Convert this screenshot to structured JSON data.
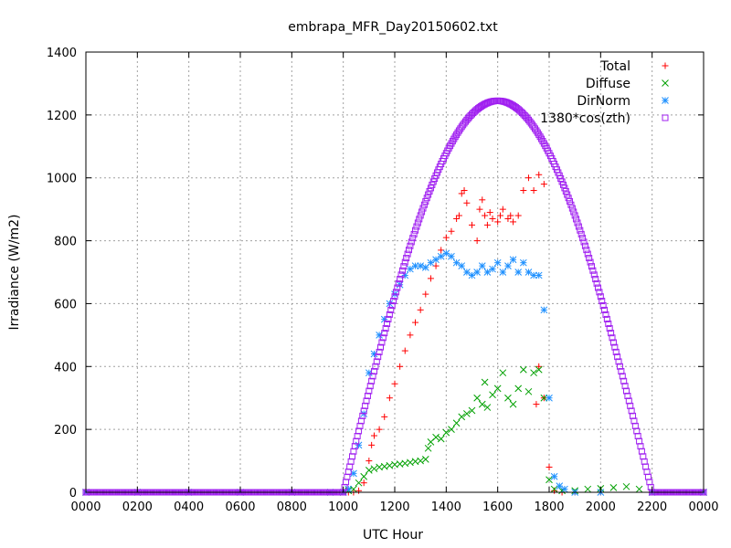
{
  "chart_data": {
    "type": "scatter",
    "title": "embrapa_MFR_Day20150602.txt",
    "xlabel": "UTC Hour",
    "ylabel": "Irradiance (W/m2)",
    "xlim": [
      0,
      24
    ],
    "ylim": [
      0,
      1400
    ],
    "grid": true,
    "legend_position": "top-right",
    "x_ticks": [
      {
        "value": 0,
        "label": "0000"
      },
      {
        "value": 2,
        "label": "0200"
      },
      {
        "value": 4,
        "label": "0400"
      },
      {
        "value": 6,
        "label": "0600"
      },
      {
        "value": 8,
        "label": "0800"
      },
      {
        "value": 10,
        "label": "1000"
      },
      {
        "value": 12,
        "label": "1200"
      },
      {
        "value": 14,
        "label": "1400"
      },
      {
        "value": 16,
        "label": "1600"
      },
      {
        "value": 18,
        "label": "1800"
      },
      {
        "value": 20,
        "label": "2000"
      },
      {
        "value": 22,
        "label": "2200"
      },
      {
        "value": 24,
        "label": "0000"
      }
    ],
    "y_ticks": [
      0,
      200,
      400,
      600,
      800,
      1000,
      1200,
      1400
    ],
    "series": [
      {
        "name": "Total",
        "marker": "plus",
        "color": "#ff0000",
        "points": [
          [
            0,
            0
          ],
          [
            2,
            0
          ],
          [
            4,
            0
          ],
          [
            6,
            0
          ],
          [
            8,
            0
          ],
          [
            9.5,
            0
          ],
          [
            10.0,
            0
          ],
          [
            10.2,
            0
          ],
          [
            10.4,
            0
          ],
          [
            10.6,
            5
          ],
          [
            10.8,
            30
          ],
          [
            11.0,
            100
          ],
          [
            11.1,
            150
          ],
          [
            11.2,
            180
          ],
          [
            11.4,
            200
          ],
          [
            11.6,
            240
          ],
          [
            11.8,
            300
          ],
          [
            12.0,
            345
          ],
          [
            12.2,
            400
          ],
          [
            12.4,
            450
          ],
          [
            12.6,
            500
          ],
          [
            12.8,
            540
          ],
          [
            13.0,
            580
          ],
          [
            13.2,
            630
          ],
          [
            13.4,
            680
          ],
          [
            13.6,
            720
          ],
          [
            13.8,
            770
          ],
          [
            14.0,
            810
          ],
          [
            14.2,
            830
          ],
          [
            14.4,
            870
          ],
          [
            14.5,
            880
          ],
          [
            14.6,
            950
          ],
          [
            14.7,
            960
          ],
          [
            14.8,
            920
          ],
          [
            15.0,
            850
          ],
          [
            15.2,
            800
          ],
          [
            15.3,
            900
          ],
          [
            15.4,
            930
          ],
          [
            15.5,
            880
          ],
          [
            15.6,
            850
          ],
          [
            15.7,
            890
          ],
          [
            15.8,
            870
          ],
          [
            16.0,
            860
          ],
          [
            16.1,
            880
          ],
          [
            16.2,
            900
          ],
          [
            16.4,
            870
          ],
          [
            16.5,
            880
          ],
          [
            16.6,
            860
          ],
          [
            16.8,
            880
          ],
          [
            17.0,
            960
          ],
          [
            17.2,
            1000
          ],
          [
            17.4,
            960
          ],
          [
            17.6,
            1010
          ],
          [
            17.8,
            980
          ],
          [
            17.6,
            400
          ],
          [
            17.5,
            280
          ],
          [
            17.8,
            300
          ],
          [
            18.0,
            80
          ],
          [
            18.2,
            5
          ],
          [
            18.5,
            0
          ],
          [
            19,
            0
          ],
          [
            20,
            0
          ],
          [
            22,
            0
          ],
          [
            24,
            0
          ]
        ]
      },
      {
        "name": "Diffuse",
        "marker": "x",
        "color": "#00a000",
        "points": [
          [
            0,
            0
          ],
          [
            2,
            0
          ],
          [
            4,
            0
          ],
          [
            6,
            0
          ],
          [
            8,
            0
          ],
          [
            9.5,
            0
          ],
          [
            10.0,
            0
          ],
          [
            10.2,
            5
          ],
          [
            10.4,
            10
          ],
          [
            10.6,
            30
          ],
          [
            10.8,
            50
          ],
          [
            11.0,
            70
          ],
          [
            11.2,
            75
          ],
          [
            11.4,
            80
          ],
          [
            11.6,
            82
          ],
          [
            11.8,
            85
          ],
          [
            12.0,
            88
          ],
          [
            12.2,
            90
          ],
          [
            12.4,
            92
          ],
          [
            12.6,
            95
          ],
          [
            12.8,
            98
          ],
          [
            13.0,
            100
          ],
          [
            13.2,
            105
          ],
          [
            13.3,
            140
          ],
          [
            13.4,
            160
          ],
          [
            13.6,
            175
          ],
          [
            13.8,
            170
          ],
          [
            14.0,
            190
          ],
          [
            14.2,
            200
          ],
          [
            14.4,
            220
          ],
          [
            14.6,
            240
          ],
          [
            14.8,
            250
          ],
          [
            15.0,
            260
          ],
          [
            15.2,
            300
          ],
          [
            15.4,
            280
          ],
          [
            15.5,
            350
          ],
          [
            15.6,
            270
          ],
          [
            15.8,
            310
          ],
          [
            16.0,
            330
          ],
          [
            16.2,
            380
          ],
          [
            16.4,
            300
          ],
          [
            16.6,
            280
          ],
          [
            16.8,
            330
          ],
          [
            17.0,
            390
          ],
          [
            17.2,
            320
          ],
          [
            17.4,
            380
          ],
          [
            17.6,
            390
          ],
          [
            17.8,
            300
          ],
          [
            18.0,
            40
          ],
          [
            18.2,
            10
          ],
          [
            18.5,
            5
          ],
          [
            19.0,
            5
          ],
          [
            19.5,
            10
          ],
          [
            20.0,
            12
          ],
          [
            20.5,
            15
          ],
          [
            21.0,
            18
          ],
          [
            21.5,
            10
          ],
          [
            22.0,
            0
          ],
          [
            24,
            0
          ]
        ]
      },
      {
        "name": "DirNorm",
        "marker": "star",
        "color": "#1e90ff",
        "points": [
          [
            0,
            0
          ],
          [
            2,
            0
          ],
          [
            4,
            0
          ],
          [
            6,
            0
          ],
          [
            8,
            0
          ],
          [
            9.5,
            0
          ],
          [
            10.0,
            0
          ],
          [
            10.2,
            10
          ],
          [
            10.4,
            60
          ],
          [
            10.6,
            150
          ],
          [
            10.8,
            250
          ],
          [
            11.0,
            380
          ],
          [
            11.2,
            440
          ],
          [
            11.4,
            500
          ],
          [
            11.6,
            550
          ],
          [
            11.8,
            600
          ],
          [
            12.0,
            630
          ],
          [
            12.2,
            660
          ],
          [
            12.4,
            690
          ],
          [
            12.6,
            710
          ],
          [
            12.8,
            720
          ],
          [
            13.0,
            720
          ],
          [
            13.2,
            715
          ],
          [
            13.4,
            730
          ],
          [
            13.6,
            740
          ],
          [
            13.8,
            750
          ],
          [
            14.0,
            760
          ],
          [
            14.2,
            750
          ],
          [
            14.4,
            730
          ],
          [
            14.6,
            720
          ],
          [
            14.8,
            700
          ],
          [
            15.0,
            690
          ],
          [
            15.2,
            700
          ],
          [
            15.4,
            720
          ],
          [
            15.6,
            700
          ],
          [
            15.8,
            710
          ],
          [
            16.0,
            730
          ],
          [
            16.2,
            700
          ],
          [
            16.4,
            720
          ],
          [
            16.6,
            740
          ],
          [
            16.8,
            700
          ],
          [
            17.0,
            730
          ],
          [
            17.2,
            700
          ],
          [
            17.4,
            690
          ],
          [
            17.6,
            690
          ],
          [
            17.8,
            580
          ],
          [
            18.0,
            300
          ],
          [
            18.2,
            50
          ],
          [
            18.4,
            20
          ],
          [
            18.6,
            10
          ],
          [
            19,
            0
          ],
          [
            20,
            0
          ],
          [
            22,
            0
          ],
          [
            24,
            0
          ]
        ]
      },
      {
        "name": "1380*cos(zth)",
        "marker": "square",
        "color": "#a020f0",
        "curve": {
          "start": 10.0,
          "end": 22.0,
          "peak_x": 16.0,
          "peak_y": 1245,
          "step": 0.05
        }
      }
    ]
  }
}
